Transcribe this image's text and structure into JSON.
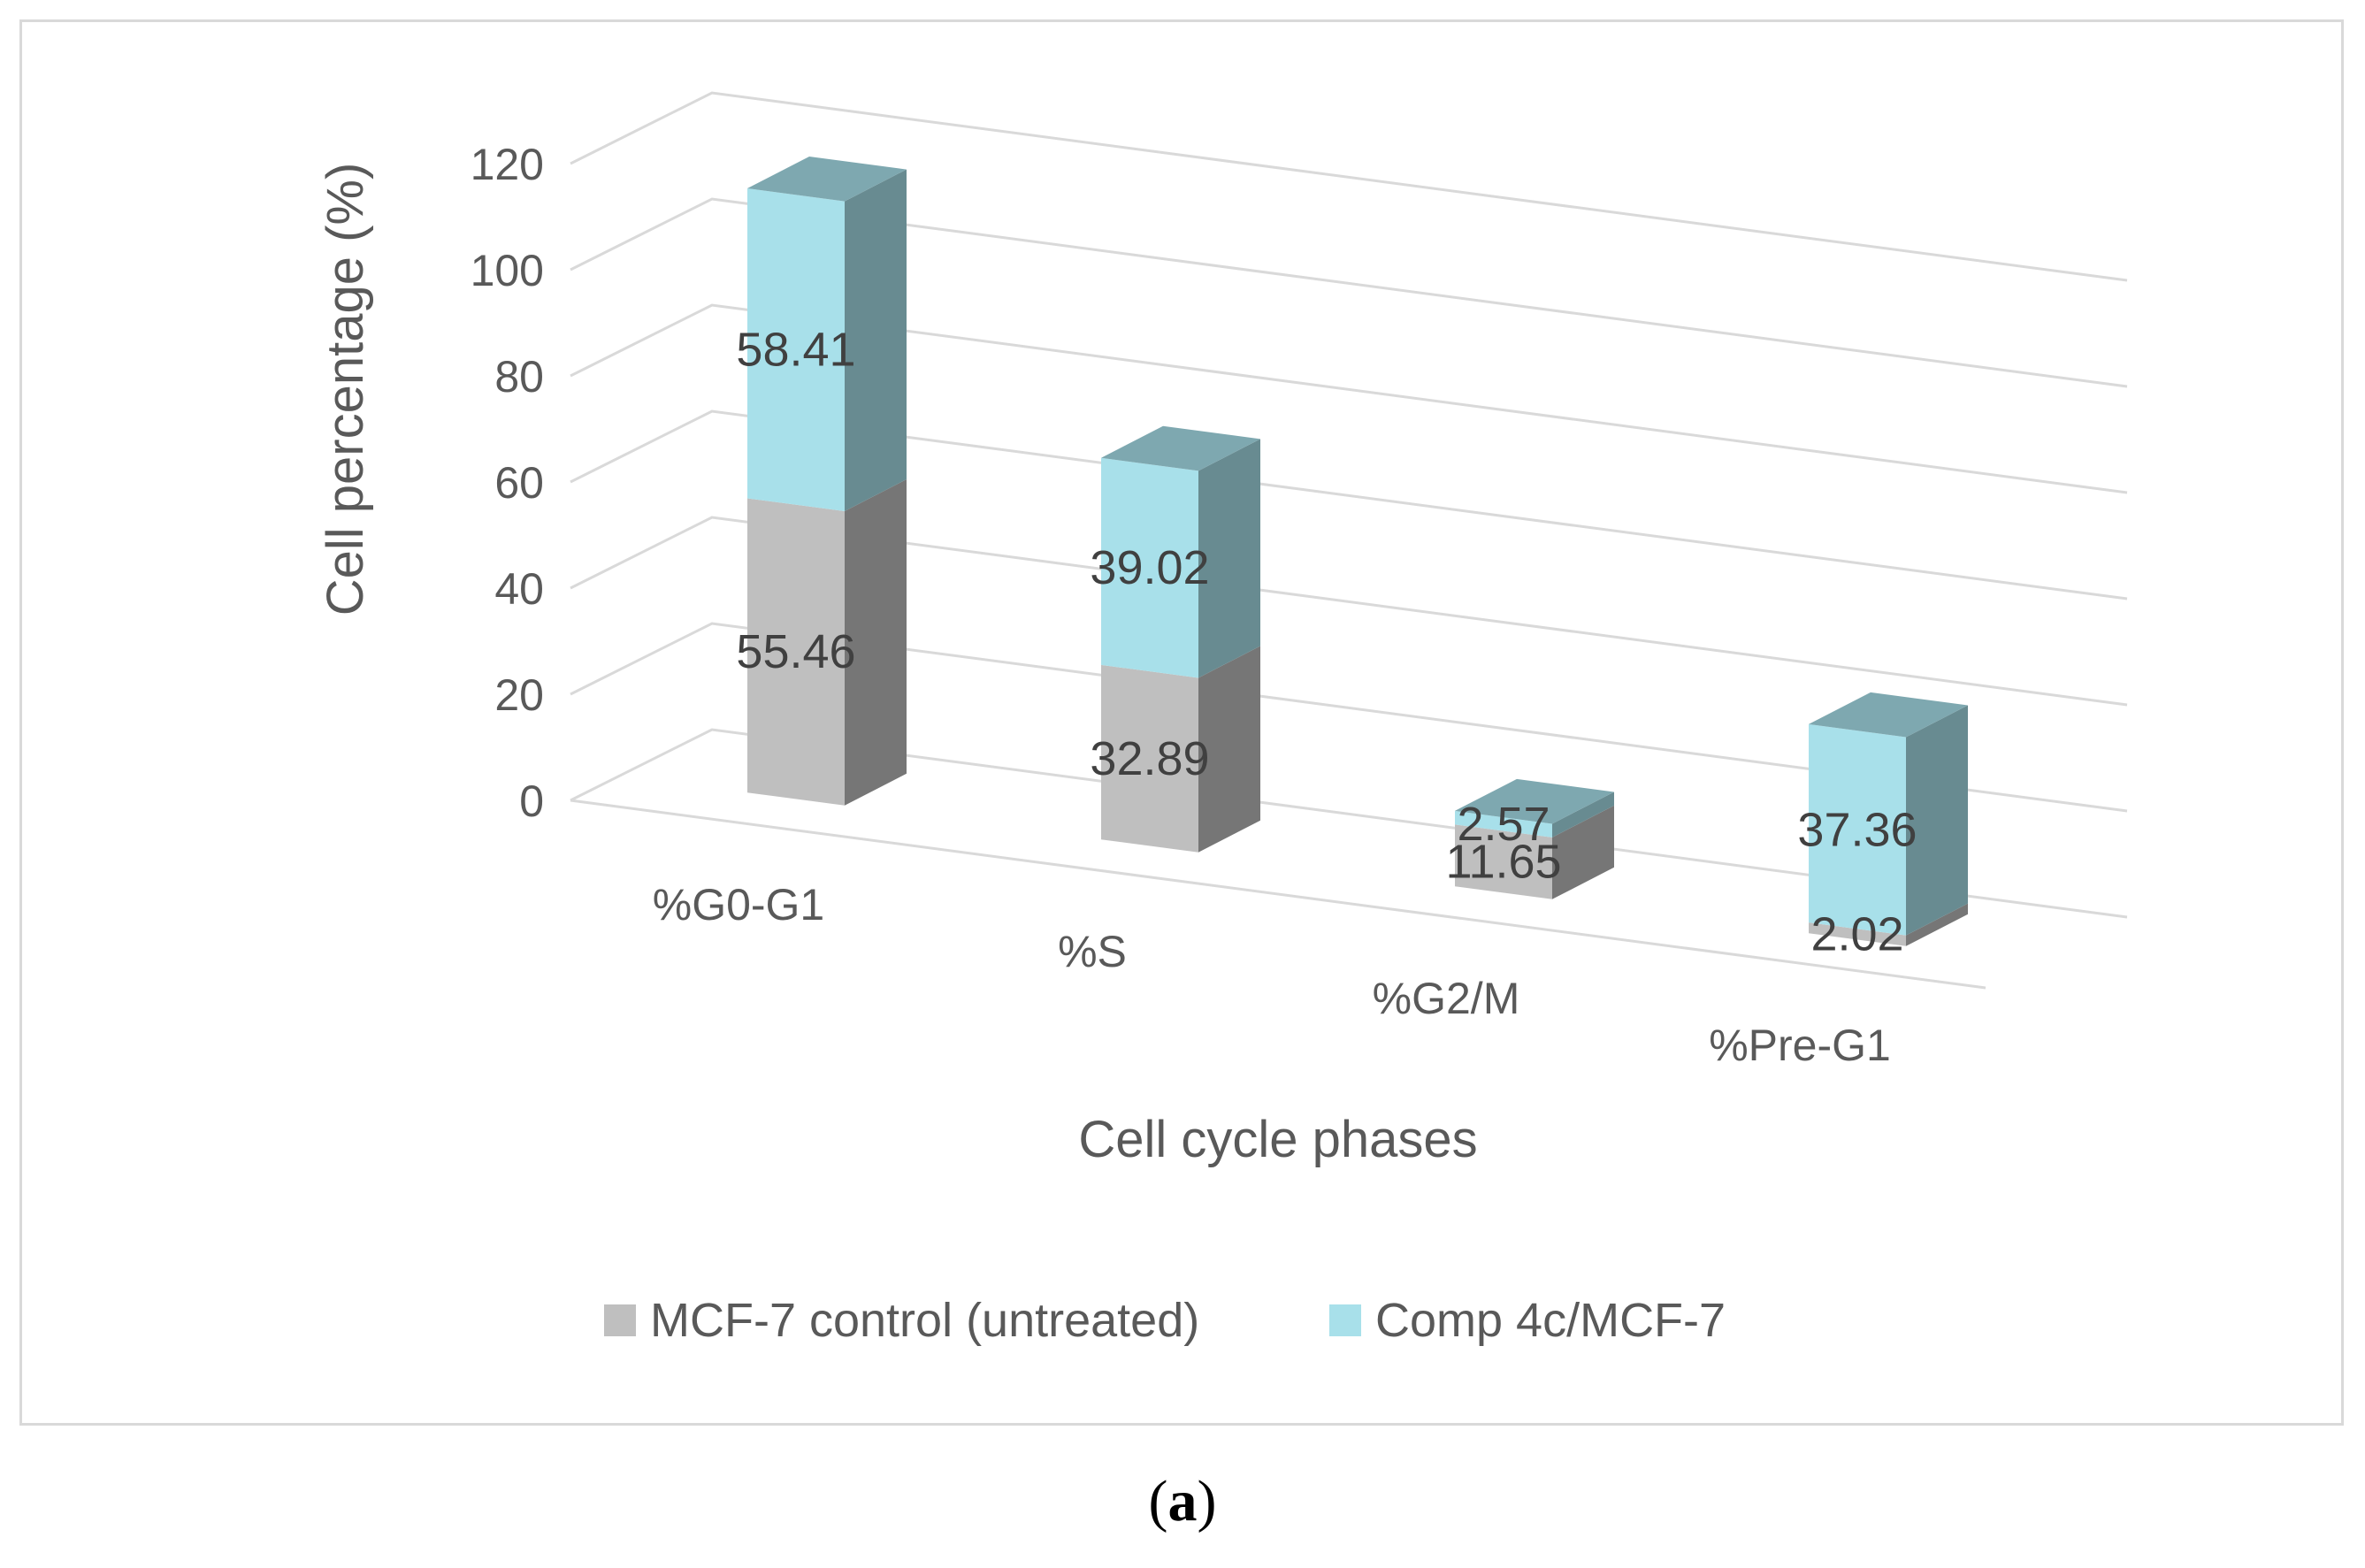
{
  "chart_data": {
    "type": "bar",
    "stacked": true,
    "three_d": true,
    "categories": [
      "%G0-G1",
      "%S",
      "%G2/M",
      "%Pre-G1"
    ],
    "series": [
      {
        "name": "MCF-7 control (untreated)",
        "values": [
          55.46,
          32.89,
          11.65,
          2.02
        ],
        "color": "#bfbfbf"
      },
      {
        "name": "Comp 4c/MCF-7",
        "values": [
          58.41,
          39.02,
          2.57,
          37.36
        ],
        "color": "#a8e0ea"
      }
    ],
    "data_labels": [
      [
        "55.46",
        "32.89",
        "11.65",
        "2.02"
      ],
      [
        "58.41",
        "39.02",
        "2.57",
        "37.36"
      ]
    ],
    "title": "",
    "xlabel": "Cell cycle phases",
    "ylabel": "Cell percentage (%)",
    "yticks": [
      "0",
      "20",
      "40",
      "60",
      "80",
      "100",
      "120"
    ],
    "ylim": [
      0,
      120
    ],
    "grid": true,
    "legend_position": "bottom"
  },
  "caption": {
    "open": "(",
    "letter": "a",
    "close": ")"
  }
}
